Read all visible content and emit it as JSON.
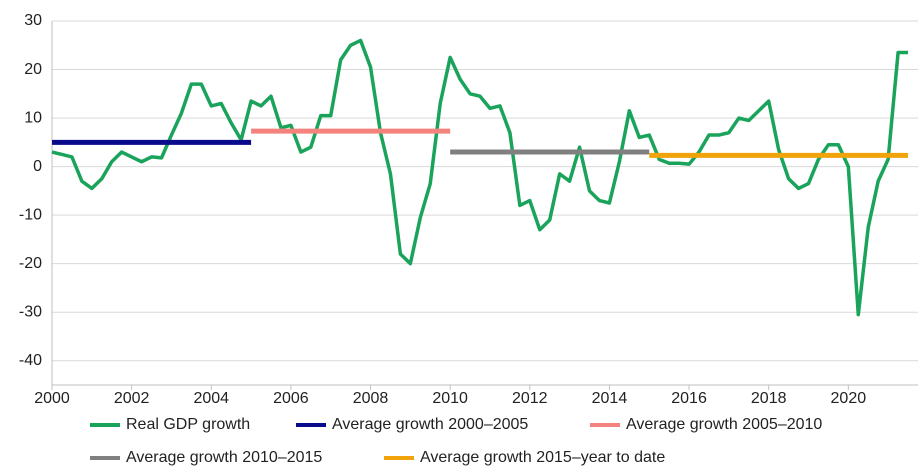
{
  "chart_data": {
    "type": "line",
    "xlim": [
      2000,
      2021.75
    ],
    "xticks": [
      2000,
      2002,
      2004,
      2006,
      2008,
      2010,
      2012,
      2014,
      2016,
      2018,
      2020
    ],
    "ylim": [
      -45,
      30
    ],
    "yticks": [
      -40,
      -30,
      -20,
      -10,
      0,
      10,
      20,
      30
    ],
    "grid": true,
    "series": [
      {
        "name": "Real GDP growth",
        "color": "#1aa35a",
        "x": [
          2000,
          2000.25,
          2000.5,
          2000.75,
          2001,
          2001.25,
          2001.5,
          2001.75,
          2002,
          2002.25,
          2002.5,
          2002.75,
          2003,
          2003.25,
          2003.5,
          2003.75,
          2004,
          2004.25,
          2004.5,
          2004.75,
          2005,
          2005.25,
          2005.5,
          2005.75,
          2006,
          2006.25,
          2006.5,
          2006.75,
          2007,
          2007.25,
          2007.5,
          2007.75,
          2008,
          2008.25,
          2008.5,
          2008.75,
          2009,
          2009.25,
          2009.5,
          2009.75,
          2010,
          2010.25,
          2010.5,
          2010.75,
          2011,
          2011.25,
          2011.5,
          2011.75,
          2012,
          2012.25,
          2012.5,
          2012.75,
          2013,
          2013.25,
          2013.5,
          2013.75,
          2014,
          2014.25,
          2014.5,
          2014.75,
          2015,
          2015.25,
          2015.5,
          2015.75,
          2016,
          2016.25,
          2016.5,
          2016.75,
          2017,
          2017.25,
          2017.5,
          2017.75,
          2018,
          2018.25,
          2018.5,
          2018.75,
          2019,
          2019.25,
          2019.5,
          2019.75,
          2020,
          2020.25,
          2020.5,
          2020.75,
          2021,
          2021.25,
          2021.5
        ],
        "values": [
          3,
          2.5,
          2,
          -3,
          -4.5,
          -2.5,
          1,
          3,
          2,
          1,
          2,
          1.8,
          6.5,
          11,
          17,
          17,
          12.5,
          13,
          9,
          5.5,
          13.5,
          12.5,
          14.5,
          8,
          8.5,
          3,
          4,
          10.5,
          10.5,
          22,
          25,
          26,
          20.5,
          7,
          -1.5,
          -18,
          -20,
          -10.5,
          -3.5,
          13,
          22.5,
          18,
          15,
          14.5,
          12,
          12.5,
          7,
          -8,
          -7,
          -13,
          -11,
          -1.5,
          -3,
          4,
          -5,
          -7,
          -7.5,
          1,
          11.5,
          6,
          6.5,
          1.5,
          0.7,
          0.7,
          0.5,
          3,
          6.5,
          6.5,
          7,
          10,
          9.5,
          11.5,
          13.5,
          3.5,
          -2.5,
          -4.5,
          -3.5,
          1.5,
          4.5,
          4.5,
          0,
          -30.5,
          -12.5,
          -3,
          1.5,
          23.5,
          23.5
        ]
      },
      {
        "name": "Average growth 2000–2005",
        "color": "#0a0a8c",
        "x": [
          2000,
          2005
        ],
        "values": [
          5,
          5
        ]
      },
      {
        "name": "Average growth 2005–2010",
        "color": "#f4837d",
        "x": [
          2005,
          2010
        ],
        "values": [
          7.3,
          7.3
        ]
      },
      {
        "name": "Average growth 2010–2015",
        "color": "#808080",
        "x": [
          2010,
          2015
        ],
        "values": [
          3,
          3
        ]
      },
      {
        "name": "Average growth 2015–year to date",
        "color": "#f0a30a",
        "x": [
          2015,
          2021.5
        ],
        "values": [
          2.3,
          2.3
        ]
      }
    ]
  }
}
